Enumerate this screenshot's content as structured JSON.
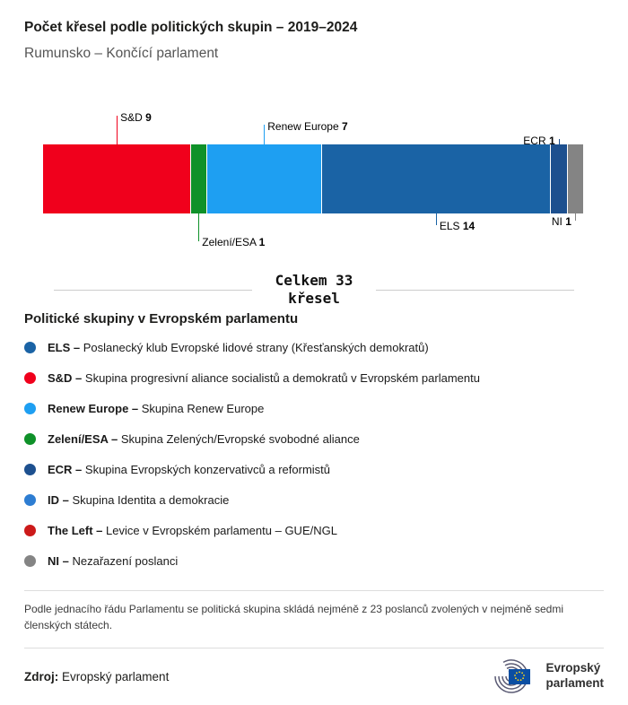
{
  "header": {
    "title": "Počet křesel podle politických skupin – 2019–2024",
    "subtitle": "Rumunsko – Končící parlament"
  },
  "chart_data": {
    "type": "bar",
    "variant": "horizontal-stacked-seats",
    "title": "Počet křesel podle politických skupin – 2019–2024",
    "region": "Rumunsko – Končící parlament",
    "total_seats": 33,
    "total_label_line1": "Celkem 33",
    "total_label_line2": "křesel",
    "segments": [
      {
        "id": "sd",
        "group": "S&D",
        "seats": 9,
        "color": "#f0001c",
        "callout": {
          "side": "above",
          "line": 32,
          "align": "right"
        }
      },
      {
        "id": "greens",
        "group": "Zelení/ESA",
        "seats": 1,
        "color": "#0f9129",
        "callout": {
          "side": "below",
          "line": 31,
          "align": "right"
        }
      },
      {
        "id": "renew",
        "group": "Renew Europe",
        "seats": 7,
        "color": "#1e9ff2",
        "callout": {
          "side": "above",
          "line": 22,
          "align": "right"
        }
      },
      {
        "id": "els",
        "group": "ELS",
        "seats": 14,
        "color": "#1a63a5",
        "callout": {
          "side": "below",
          "line": 13,
          "align": "right"
        }
      },
      {
        "id": "ecr",
        "group": "ECR",
        "seats": 1,
        "color": "#1d508f",
        "callout": {
          "side": "above",
          "line": 6,
          "align": "left"
        }
      },
      {
        "id": "ni",
        "group": "NI",
        "seats": 1,
        "color": "#848484",
        "callout": {
          "side": "below",
          "line": 8,
          "align": "left"
        }
      }
    ]
  },
  "legend": {
    "heading": "Politické skupiny v Evropském parlamentu",
    "items": [
      {
        "name": "ELS",
        "desc": "Poslanecký klub Evropské lidové strany (Křesťanských demokratů)",
        "color": "#1a63a5"
      },
      {
        "name": "S&D",
        "desc": "Skupina progresivní aliance socialistů a demokratů v Evropském parlamentu",
        "color": "#f0001c"
      },
      {
        "name": "Renew Europe",
        "desc": "Skupina Renew Europe",
        "color": "#1e9ff2"
      },
      {
        "name": "Zelení/ESA",
        "desc": "Skupina Zelených/Evropské svobodné aliance",
        "color": "#0f9129"
      },
      {
        "name": "ECR",
        "desc": "Skupina Evropských konzervativců a reformistů",
        "color": "#1d508f"
      },
      {
        "name": "ID",
        "desc": "Skupina Identita a demokracie",
        "color": "#2d7dd2"
      },
      {
        "name": "The Left",
        "desc": "Levice v Evropském parlamentu – GUE/NGL",
        "color": "#cc1a1a"
      },
      {
        "name": "NI",
        "desc": "Nezařazení poslanci",
        "color": "#848484"
      }
    ]
  },
  "footnote": "Podle jednacího řádu Parlamentu se politická skupina skládá nejméně z 23 poslanců zvolených v nejméně sedmi členských státech.",
  "source": {
    "label": "Zdroj:",
    "value": "Evropský parlament"
  },
  "logo": {
    "line1": "Evropský",
    "line2": "parlament"
  }
}
